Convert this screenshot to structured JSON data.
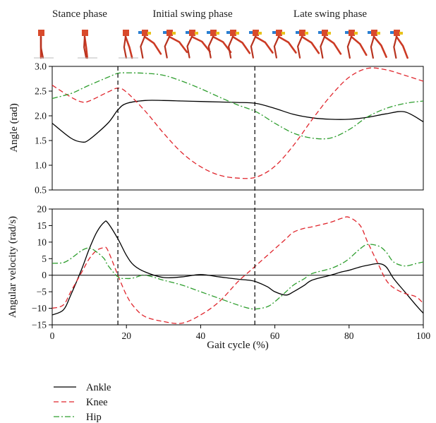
{
  "figure": {
    "phases": [
      "Stance phase",
      "Initial swing phase",
      "Late swing phase"
    ],
    "phase_boundaries": [
      17.7,
      54.6
    ]
  },
  "chart_data": [
    {
      "type": "line",
      "xlabel": "",
      "ylabel": "Angle (rad)",
      "xlim": [
        0,
        100
      ],
      "ylim": [
        0.5,
        3.0
      ],
      "yticks": [
        "0.5",
        "1.0",
        "1.5",
        "2.0",
        "2.5",
        "3.0"
      ],
      "x": [
        0,
        5,
        8,
        10,
        15,
        17.7,
        20,
        25,
        30,
        35,
        40,
        45,
        50,
        55,
        60,
        65,
        70,
        75,
        80,
        85,
        90,
        95,
        100
      ],
      "series": [
        {
          "name": "Ankle",
          "color": "#000000",
          "dash": "solid",
          "values": [
            1.85,
            1.55,
            1.47,
            1.52,
            1.85,
            2.12,
            2.25,
            2.31,
            2.31,
            2.3,
            2.29,
            2.28,
            2.27,
            2.25,
            2.15,
            2.03,
            1.96,
            1.93,
            1.93,
            1.97,
            2.04,
            2.08,
            1.88
          ]
        },
        {
          "name": "Knee",
          "color": "#e0262d",
          "dash": "dashed",
          "values": [
            2.62,
            2.38,
            2.28,
            2.3,
            2.48,
            2.56,
            2.48,
            2.1,
            1.65,
            1.25,
            0.97,
            0.8,
            0.74,
            0.76,
            0.98,
            1.4,
            1.92,
            2.4,
            2.78,
            2.96,
            2.93,
            2.82,
            2.7
          ]
        },
        {
          "name": "Hip",
          "color": "#2e9e2e",
          "dash": "dashdot",
          "values": [
            2.35,
            2.45,
            2.55,
            2.62,
            2.78,
            2.86,
            2.87,
            2.86,
            2.82,
            2.7,
            2.55,
            2.38,
            2.22,
            2.08,
            1.85,
            1.65,
            1.55,
            1.55,
            1.72,
            1.98,
            2.15,
            2.25,
            2.3
          ]
        }
      ]
    },
    {
      "type": "line",
      "xlabel": "Gait cycle (%)",
      "ylabel": "Angular velocity (rad/s)",
      "xlim": [
        0,
        100
      ],
      "ylim": [
        -15,
        20
      ],
      "xticks": [
        "0",
        "20",
        "40",
        "60",
        "80",
        "100"
      ],
      "yticks": [
        "−15",
        "−10",
        "−5",
        "0",
        "5",
        "10",
        "15",
        "20"
      ],
      "zero_line": true,
      "x": [
        0,
        3,
        5,
        8,
        10,
        12,
        14,
        15,
        17.7,
        20,
        22,
        25,
        30,
        35,
        40,
        45,
        50,
        53,
        55,
        58,
        60,
        63,
        65,
        68,
        70,
        75,
        78,
        80,
        83,
        85,
        88,
        90,
        92,
        95,
        98,
        100
      ],
      "series": [
        {
          "name": "Ankle",
          "color": "#000000",
          "dash": "solid",
          "values": [
            -12,
            -10.5,
            -6,
            2,
            8,
            13,
            16,
            15.8,
            11,
            6,
            3,
            1,
            -0.7,
            -0.5,
            0.2,
            -0.5,
            -1.2,
            -1.5,
            -2,
            -3.5,
            -5,
            -6,
            -5,
            -3,
            -1.5,
            0,
            1,
            1.5,
            2.5,
            3,
            3.5,
            2.5,
            -1,
            -5,
            -9,
            -11.5
          ]
        },
        {
          "name": "Knee",
          "color": "#e0262d",
          "dash": "dashed",
          "values": [
            -10,
            -9,
            -5,
            1,
            5,
            7.5,
            8.3,
            7.5,
            0,
            -6,
            -9.5,
            -12.5,
            -14,
            -14.5,
            -12,
            -8,
            -2,
            1,
            3,
            6,
            8,
            11,
            13,
            14.2,
            14.6,
            16,
            17.2,
            17.5,
            15,
            10,
            3,
            -1.5,
            -3.8,
            -5.5,
            -6.5,
            -8.5
          ]
        },
        {
          "name": "Hip",
          "color": "#2e9e2e",
          "dash": "dashdot",
          "values": [
            3.6,
            3.8,
            5,
            7.5,
            8.2,
            7,
            5,
            3,
            -0.5,
            -1,
            -0.8,
            0,
            -1.5,
            -3,
            -5,
            -7,
            -9,
            -10,
            -10.2,
            -9.5,
            -8,
            -5,
            -3,
            -1,
            0.5,
            2,
            3.5,
            5,
            8,
            9.3,
            8.8,
            7,
            4,
            2.8,
            3.5,
            4
          ]
        }
      ]
    }
  ],
  "legend": {
    "placement": "bottom-left",
    "entries": [
      "Ankle",
      "Knee",
      "Hip"
    ]
  }
}
